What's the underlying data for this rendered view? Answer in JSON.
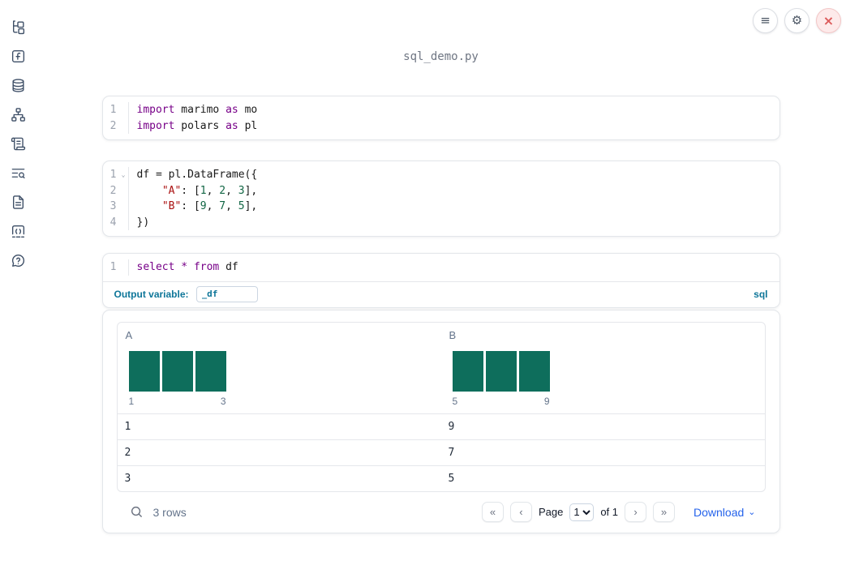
{
  "app": {
    "title": "sql_demo.py"
  },
  "icons": {
    "menu": "≡",
    "settings": "⚙",
    "close": "×",
    "fold": "⌄",
    "first": "«",
    "prev": "‹",
    "next": "›",
    "last": "»",
    "caret_down": "⌄"
  },
  "sidebar": {
    "items": [
      {
        "icon": "file-tree-icon"
      },
      {
        "icon": "function-square-icon"
      },
      {
        "icon": "database-icon"
      },
      {
        "icon": "dependency-graph-icon"
      },
      {
        "icon": "scroll-icon"
      },
      {
        "icon": "list-search-icon"
      },
      {
        "icon": "file-text-icon"
      },
      {
        "icon": "code-square-icon"
      },
      {
        "icon": "help-circle-icon"
      }
    ]
  },
  "cells": [
    {
      "lines": [
        {
          "n": "1",
          "tokens": [
            {
              "c": "kw",
              "t": "import"
            },
            {
              "c": "pl",
              "t": " marimo "
            },
            {
              "c": "kw",
              "t": "as"
            },
            {
              "c": "pl",
              "t": " mo"
            }
          ]
        },
        {
          "n": "2",
          "tokens": [
            {
              "c": "kw",
              "t": "import"
            },
            {
              "c": "pl",
              "t": " polars "
            },
            {
              "c": "kw",
              "t": "as"
            },
            {
              "c": "pl",
              "t": " pl"
            }
          ]
        }
      ]
    },
    {
      "lines": [
        {
          "n": "1",
          "fold": true,
          "tokens": [
            {
              "c": "pl",
              "t": "df = pl.DataFrame({"
            }
          ]
        },
        {
          "n": "2",
          "tokens": [
            {
              "c": "pl",
              "t": "    "
            },
            {
              "c": "str",
              "t": "\"A\""
            },
            {
              "c": "pl",
              "t": ": ["
            },
            {
              "c": "num",
              "t": "1"
            },
            {
              "c": "pl",
              "t": ", "
            },
            {
              "c": "num",
              "t": "2"
            },
            {
              "c": "pl",
              "t": ", "
            },
            {
              "c": "num",
              "t": "3"
            },
            {
              "c": "pl",
              "t": "],"
            }
          ]
        },
        {
          "n": "3",
          "tokens": [
            {
              "c": "pl",
              "t": "    "
            },
            {
              "c": "str",
              "t": "\"B\""
            },
            {
              "c": "pl",
              "t": ": ["
            },
            {
              "c": "num",
              "t": "9"
            },
            {
              "c": "pl",
              "t": ", "
            },
            {
              "c": "num",
              "t": "7"
            },
            {
              "c": "pl",
              "t": ", "
            },
            {
              "c": "num",
              "t": "5"
            },
            {
              "c": "pl",
              "t": "],"
            }
          ]
        },
        {
          "n": "4",
          "tokens": [
            {
              "c": "pl",
              "t": "})"
            }
          ]
        }
      ]
    },
    {
      "lines": [
        {
          "n": "1",
          "tokens": [
            {
              "c": "kw",
              "t": "select"
            },
            {
              "c": "pl",
              "t": " "
            },
            {
              "c": "kw",
              "t": "*"
            },
            {
              "c": "pl",
              "t": " "
            },
            {
              "c": "kw",
              "t": "from"
            },
            {
              "c": "pl",
              "t": " df"
            }
          ]
        }
      ],
      "footer": {
        "label": "Output variable:",
        "value": "_df",
        "language": "sql"
      }
    }
  ],
  "table": {
    "columns": [
      {
        "name": "A",
        "hist": {
          "bars": [
            1,
            1,
            1
          ],
          "min_label": "1",
          "max_label": "3"
        }
      },
      {
        "name": "B",
        "hist": {
          "bars": [
            1,
            1,
            1
          ],
          "min_label": "5",
          "max_label": "9"
        }
      }
    ],
    "rows": [
      [
        "1",
        "9"
      ],
      [
        "2",
        "7"
      ],
      [
        "3",
        "5"
      ]
    ],
    "footer": {
      "row_count": "3 rows",
      "page_label": "Page",
      "page_value": "1",
      "of_label": "of 1",
      "download_label": "Download"
    }
  },
  "colors": {
    "accent_teal": "#0e7699",
    "keyword_purple": "#770088",
    "number_green": "#116644",
    "string_red": "#aa1111",
    "histogram_bar": "#0e6e5c",
    "link_blue": "#2563eb",
    "close_red": "#dc5a5a",
    "icon_slate": "#3d4e66"
  }
}
